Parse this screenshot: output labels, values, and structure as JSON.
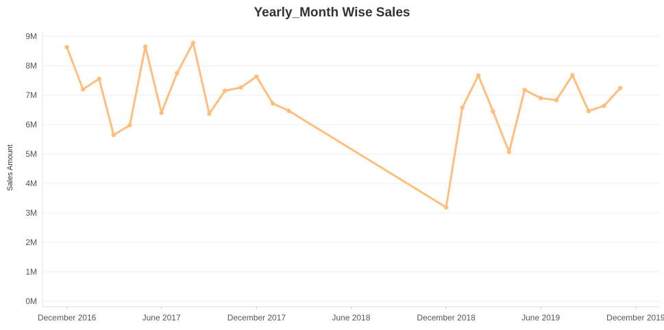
{
  "chart_data": {
    "type": "line",
    "title": "Yearly_Month Wise Sales",
    "xlabel": "",
    "ylabel": "Sales Amount",
    "ylim": [
      0,
      9000000
    ],
    "yticks": [
      {
        "value": 0,
        "label": "0M"
      },
      {
        "value": 1000000,
        "label": "1M"
      },
      {
        "value": 2000000,
        "label": "2M"
      },
      {
        "value": 3000000,
        "label": "3M"
      },
      {
        "value": 4000000,
        "label": "4M"
      },
      {
        "value": 5000000,
        "label": "5M"
      },
      {
        "value": 6000000,
        "label": "6M"
      },
      {
        "value": 7000000,
        "label": "7M"
      },
      {
        "value": 8000000,
        "label": "8M"
      },
      {
        "value": 9000000,
        "label": "9M"
      }
    ],
    "xlim": [
      "2016-10-15",
      "2020-01-15"
    ],
    "xticks": [
      {
        "date": "2016-12-01",
        "label": "December 2016"
      },
      {
        "date": "2017-06-01",
        "label": "June 2017"
      },
      {
        "date": "2017-12-01",
        "label": "December 2017"
      },
      {
        "date": "2018-06-01",
        "label": "June 2018"
      },
      {
        "date": "2018-12-01",
        "label": "December 2018"
      },
      {
        "date": "2019-06-01",
        "label": "June 2019"
      },
      {
        "date": "2019-12-01",
        "label": "December 2019"
      }
    ],
    "grid": true,
    "line_color": "#FFBE7D",
    "series": [
      {
        "name": "",
        "points": [
          {
            "x": "2016-12-01",
            "y": 8630000
          },
          {
            "x": "2017-01-01",
            "y": 7200000
          },
          {
            "x": "2017-02-01",
            "y": 7550000
          },
          {
            "x": "2017-03-01",
            "y": 5650000
          },
          {
            "x": "2017-04-01",
            "y": 5980000
          },
          {
            "x": "2017-05-01",
            "y": 8650000
          },
          {
            "x": "2017-06-01",
            "y": 6400000
          },
          {
            "x": "2017-07-01",
            "y": 7750000
          },
          {
            "x": "2017-08-01",
            "y": 8780000
          },
          {
            "x": "2017-09-01",
            "y": 6370000
          },
          {
            "x": "2017-10-01",
            "y": 7150000
          },
          {
            "x": "2017-11-01",
            "y": 7260000
          },
          {
            "x": "2017-12-01",
            "y": 7630000
          },
          {
            "x": "2018-01-01",
            "y": 6720000
          },
          {
            "x": "2018-02-01",
            "y": 6470000
          },
          {
            "x": "2018-12-01",
            "y": 3190000
          },
          {
            "x": "2019-01-01",
            "y": 6570000
          },
          {
            "x": "2019-02-01",
            "y": 7670000
          },
          {
            "x": "2019-03-01",
            "y": 6450000
          },
          {
            "x": "2019-04-01",
            "y": 5070000
          },
          {
            "x": "2019-05-01",
            "y": 7180000
          },
          {
            "x": "2019-06-01",
            "y": 6900000
          },
          {
            "x": "2019-07-01",
            "y": 6830000
          },
          {
            "x": "2019-08-01",
            "y": 7680000
          },
          {
            "x": "2019-09-01",
            "y": 6460000
          },
          {
            "x": "2019-10-01",
            "y": 6640000
          },
          {
            "x": "2019-11-01",
            "y": 7240000
          }
        ]
      }
    ]
  }
}
